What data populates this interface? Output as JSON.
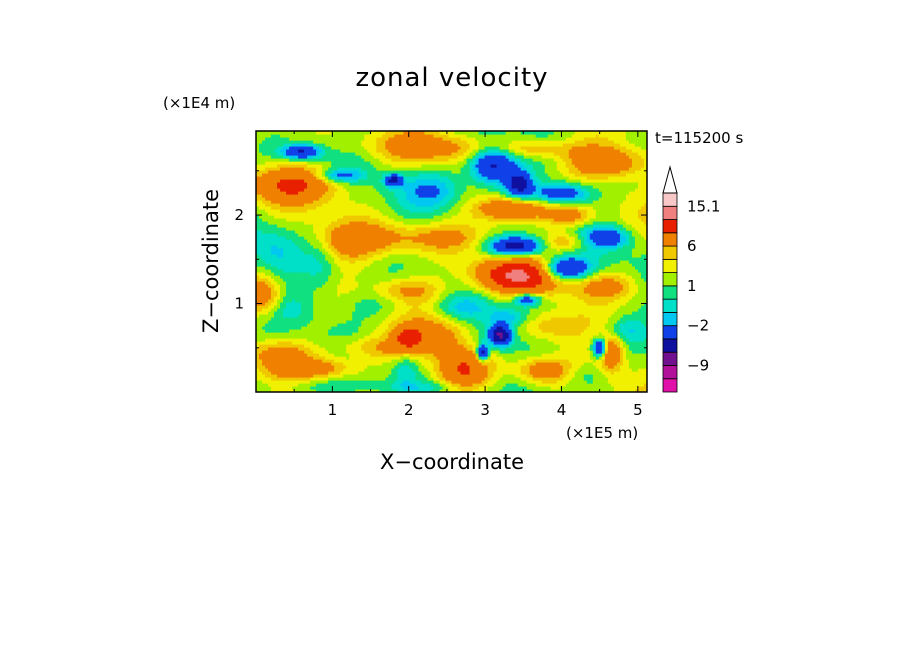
{
  "chart_data": {
    "type": "heatmap",
    "title": "zonal velocity",
    "xlabel": "X−coordinate",
    "ylabel": "Z−coordinate",
    "x_unit": "(×1E5 m)",
    "y_unit": "(×1E4 m)",
    "time_label": "t=115200 s",
    "x_ticks": [
      1,
      2,
      3,
      4,
      5
    ],
    "y_ticks": [
      1,
      2
    ],
    "xlim": [
      0,
      5.12
    ],
    "ylim": [
      0,
      2.95
    ],
    "colorbar": {
      "labels": [
        "15.1",
        "6",
        "1",
        "−2",
        "−9"
      ],
      "label_levels": [
        15.1,
        6,
        1,
        -2,
        -9
      ],
      "levels": [
        -15,
        -12,
        -9,
        -6,
        -3,
        -2,
        -1,
        0,
        1,
        2,
        3,
        6,
        9,
        12,
        15.1
      ],
      "colors": [
        "#e010a8",
        "#b0109a",
        "#70108e",
        "#1010a0",
        "#1040e8",
        "#00c8f0",
        "#00e0c8",
        "#10e080",
        "#a0f000",
        "#f0f000",
        "#f0c800",
        "#f08000",
        "#e82000",
        "#f08080",
        "#f8c8c8"
      ],
      "extend_max": true
    },
    "field": {
      "background": 0.5,
      "features": [
        {
          "x": 0.5,
          "z": 2.35,
          "sx": 0.45,
          "sz": 0.14,
          "v": 5
        },
        {
          "x": 2.3,
          "z": 2.78,
          "sx": 0.65,
          "sz": 0.12,
          "v": 3
        },
        {
          "x": 0.6,
          "z": 2.72,
          "sx": 0.18,
          "sz": 0.06,
          "v": -7
        },
        {
          "x": 1.1,
          "z": 2.45,
          "sx": 0.2,
          "sz": 0.05,
          "v": -4
        },
        {
          "x": 1.8,
          "z": 2.4,
          "sx": 0.08,
          "sz": 0.05,
          "v": -7
        },
        {
          "x": 2.3,
          "z": 2.3,
          "sx": 0.3,
          "sz": 0.15,
          "v": -3
        },
        {
          "x": 3.1,
          "z": 2.58,
          "sx": 0.22,
          "sz": 0.16,
          "v": -8
        },
        {
          "x": 3.45,
          "z": 2.35,
          "sx": 0.12,
          "sz": 0.1,
          "v": -7
        },
        {
          "x": 3.6,
          "z": 2.75,
          "sx": 0.5,
          "sz": 0.08,
          "v": 3
        },
        {
          "x": 4.0,
          "z": 2.25,
          "sx": 0.25,
          "sz": 0.08,
          "v": -6
        },
        {
          "x": 4.6,
          "z": 2.6,
          "sx": 0.35,
          "sz": 0.12,
          "v": 5
        },
        {
          "x": 3.35,
          "z": 2.07,
          "sx": 0.3,
          "sz": 0.09,
          "v": 6
        },
        {
          "x": 4.1,
          "z": 2.0,
          "sx": 0.22,
          "sz": 0.08,
          "v": 4
        },
        {
          "x": 3.4,
          "z": 1.65,
          "sx": 0.25,
          "sz": 0.08,
          "v": -9
        },
        {
          "x": 4.05,
          "z": 1.7,
          "sx": 0.22,
          "sz": 0.08,
          "v": 3
        },
        {
          "x": 4.6,
          "z": 1.75,
          "sx": 0.2,
          "sz": 0.08,
          "v": -5
        },
        {
          "x": 3.4,
          "z": 1.32,
          "sx": 0.4,
          "sz": 0.14,
          "v": 8
        },
        {
          "x": 4.05,
          "z": 1.4,
          "sx": 0.22,
          "sz": 0.09,
          "v": -8
        },
        {
          "x": 4.6,
          "z": 1.2,
          "sx": 0.28,
          "sz": 0.1,
          "v": 3
        },
        {
          "x": 3.55,
          "z": 1.05,
          "sx": 0.12,
          "sz": 0.05,
          "v": -6
        },
        {
          "x": 0.2,
          "z": 1.6,
          "sx": 0.25,
          "sz": 0.2,
          "v": -2
        },
        {
          "x": 0.85,
          "z": 1.45,
          "sx": 0.15,
          "sz": 0.25,
          "v": -1.5
        },
        {
          "x": 1.2,
          "z": 1.7,
          "sx": 0.35,
          "sz": 0.15,
          "v": 3
        },
        {
          "x": 2.2,
          "z": 1.75,
          "sx": 0.6,
          "sz": 0.12,
          "v": 3
        },
        {
          "x": 0.1,
          "z": 1.1,
          "sx": 0.15,
          "sz": 0.15,
          "v": 4
        },
        {
          "x": 0.5,
          "z": 0.95,
          "sx": 0.2,
          "sz": 0.12,
          "v": -1.5
        },
        {
          "x": 1.6,
          "z": 1.0,
          "sx": 0.3,
          "sz": 0.12,
          "v": -1.5
        },
        {
          "x": 2.0,
          "z": 1.15,
          "sx": 0.35,
          "sz": 0.1,
          "v": 3
        },
        {
          "x": 2.7,
          "z": 0.95,
          "sx": 0.25,
          "sz": 0.1,
          "v": -2
        },
        {
          "x": 0.3,
          "z": 0.45,
          "sx": 0.3,
          "sz": 0.1,
          "v": 3
        },
        {
          "x": 0.8,
          "z": 0.28,
          "sx": 0.4,
          "sz": 0.08,
          "v": 4
        },
        {
          "x": 1.5,
          "z": 0.5,
          "sx": 0.4,
          "sz": 0.1,
          "v": 3
        },
        {
          "x": 2.0,
          "z": 0.62,
          "sx": 0.12,
          "sz": 0.08,
          "v": 5
        },
        {
          "x": 2.4,
          "z": 0.65,
          "sx": 0.3,
          "sz": 0.18,
          "v": 3
        },
        {
          "x": 1.95,
          "z": 0.25,
          "sx": 0.1,
          "sz": 0.12,
          "v": -2
        },
        {
          "x": 2.7,
          "z": 0.25,
          "sx": 0.25,
          "sz": 0.15,
          "v": 5
        },
        {
          "x": 3.05,
          "z": 0.6,
          "sx": 0.25,
          "sz": 0.12,
          "v": -2
        },
        {
          "x": 3.2,
          "z": 0.65,
          "sx": 0.1,
          "sz": 0.08,
          "v": -9
        },
        {
          "x": 2.97,
          "z": 0.45,
          "sx": 0.05,
          "sz": 0.06,
          "v": -9
        },
        {
          "x": 3.3,
          "z": 0.85,
          "sx": 0.2,
          "sz": 0.08,
          "v": -3
        },
        {
          "x": 3.8,
          "z": 0.75,
          "sx": 0.35,
          "sz": 0.12,
          "v": 3
        },
        {
          "x": 3.75,
          "z": 0.25,
          "sx": 0.25,
          "sz": 0.1,
          "v": 4
        },
        {
          "x": 4.5,
          "z": 0.5,
          "sx": 0.06,
          "sz": 0.07,
          "v": -9
        },
        {
          "x": 4.65,
          "z": 0.45,
          "sx": 0.12,
          "sz": 0.15,
          "v": 5
        },
        {
          "x": 4.85,
          "z": 0.7,
          "sx": 0.2,
          "sz": 0.1,
          "v": -2
        },
        {
          "x": 4.3,
          "z": 0.2,
          "sx": 0.2,
          "sz": 0.1,
          "v": -1.5
        },
        {
          "x": 0.9,
          "z": 0.06,
          "sx": 0.6,
          "sz": 0.06,
          "v": -1.5
        },
        {
          "x": 2.3,
          "z": 0.06,
          "sx": 0.35,
          "sz": 0.05,
          "v": -1.5
        }
      ]
    }
  }
}
